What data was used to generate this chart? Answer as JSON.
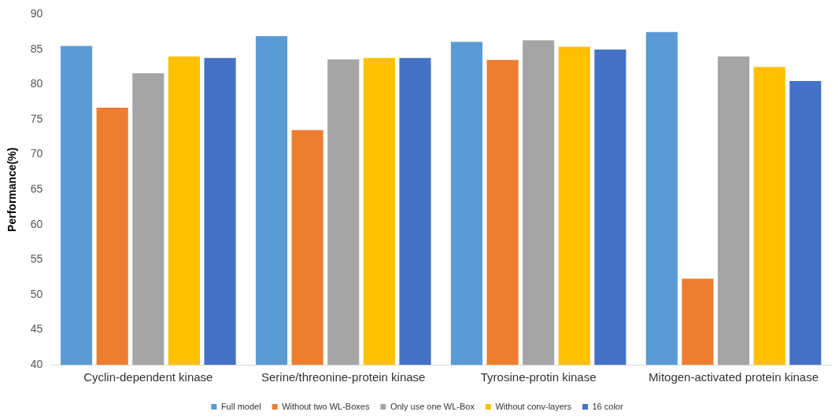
{
  "chart_data": {
    "type": "bar",
    "ylabel": "Performance(%)",
    "categories": [
      "Cyclin-dependent kinase",
      "Serine/threonine-protein kinase",
      "Tyrosine-protin kinase",
      "Mitogen-activated protein kinase"
    ],
    "series": [
      {
        "name": "Full model",
        "color": "#5b9bd5",
        "values": [
          85.5,
          86.9,
          86.1,
          87.5
        ]
      },
      {
        "name": "Without two WL-Boxes",
        "color": "#ed7d31",
        "values": [
          76.7,
          73.5,
          83.5,
          52.3
        ]
      },
      {
        "name": "Only use one WL-Box",
        "color": "#a5a5a5",
        "values": [
          81.6,
          83.6,
          86.3,
          84.0
        ]
      },
      {
        "name": "Without conv-layers",
        "color": "#ffc000",
        "values": [
          84.0,
          83.8,
          85.4,
          82.5
        ]
      },
      {
        "name": "16 color",
        "color": "#4472c4",
        "values": [
          83.8,
          83.8,
          85.0,
          80.5
        ]
      }
    ],
    "ylim": [
      40,
      90
    ],
    "yticks": [
      40,
      45,
      50,
      55,
      60,
      65,
      70,
      75,
      80,
      85,
      90
    ],
    "grid": false,
    "legend": "bottom"
  }
}
